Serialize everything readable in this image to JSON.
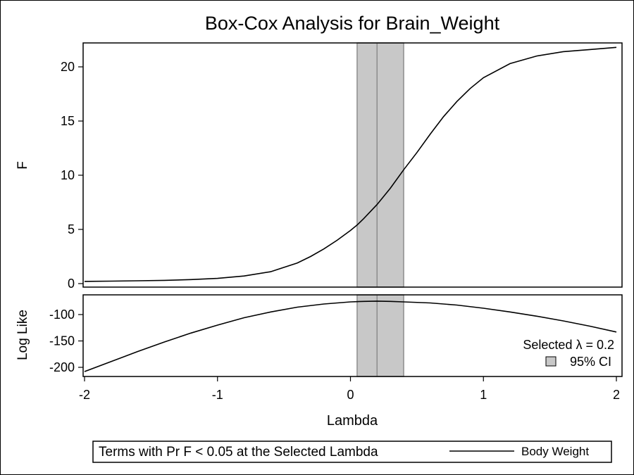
{
  "chart_data": [
    {
      "type": "line",
      "title": "Box-Cox Analysis for Brain_Weight",
      "ylabel": "F",
      "ylim": [
        0,
        22
      ],
      "yticks": [
        0,
        5,
        10,
        15,
        20
      ],
      "grid": false,
      "series": [
        {
          "x": [
            -2.0,
            -1.8,
            -1.6,
            -1.4,
            -1.2,
            -1.0,
            -0.8,
            -0.6,
            -0.4,
            -0.3,
            -0.2,
            -0.1,
            0.0,
            0.05,
            0.1,
            0.2,
            0.3,
            0.4,
            0.5,
            0.6,
            0.7,
            0.8,
            0.9,
            1.0,
            1.2,
            1.4,
            1.6,
            1.8,
            2.0
          ],
          "values": [
            0.2,
            0.23,
            0.26,
            0.3,
            0.37,
            0.48,
            0.7,
            1.1,
            1.9,
            2.5,
            3.2,
            4.0,
            4.9,
            5.4,
            6.0,
            7.3,
            8.8,
            10.5,
            12.1,
            13.8,
            15.4,
            16.8,
            18.0,
            19.0,
            20.3,
            21.0,
            21.4,
            21.6,
            21.8
          ]
        }
      ],
      "bands": [
        {
          "from": 0.05,
          "to": 0.4,
          "label": "95% CI",
          "color": "#c8c8c8"
        }
      ],
      "reference_lines": [
        {
          "x": 0.2
        }
      ]
    },
    {
      "type": "line",
      "ylabel": "Log Like",
      "xlabel": "Lambda",
      "xlim": [
        -2,
        2
      ],
      "xticks": [
        -2,
        -1,
        0,
        1,
        2
      ],
      "ylim": [
        -210,
        -70
      ],
      "yticks": [
        -100,
        -150,
        -200
      ],
      "grid": false,
      "series": [
        {
          "x": [
            -2.0,
            -1.8,
            -1.6,
            -1.4,
            -1.2,
            -1.0,
            -0.8,
            -0.6,
            -0.4,
            -0.2,
            0.0,
            0.1,
            0.2,
            0.3,
            0.4,
            0.6,
            0.8,
            1.0,
            1.2,
            1.4,
            1.6,
            1.8,
            2.0
          ],
          "values": [
            -208,
            -189,
            -170,
            -152,
            -135,
            -120,
            -106,
            -95,
            -86,
            -80,
            -76,
            -75,
            -74.5,
            -75,
            -76,
            -78,
            -82,
            -88,
            -95,
            -103,
            -112,
            -122,
            -133
          ]
        }
      ],
      "bands": [
        {
          "from": 0.05,
          "to": 0.4,
          "label": "95% CI",
          "color": "#c8c8c8"
        }
      ],
      "reference_lines": [
        {
          "x": 0.2
        }
      ],
      "annotation": "Selected λ = 0.2",
      "legend_entry": "95% CI",
      "legend_placement": "bottom-right"
    }
  ],
  "footer_legend": {
    "title": "Terms with Pr F < 0.05 at the Selected Lambda",
    "entries": [
      {
        "label": "Body Weight",
        "style": "solid-line",
        "color": "#000000"
      }
    ]
  },
  "colors": {
    "band": "#c8c8c8",
    "band_edge": "#8c8c8c",
    "line": "#000000",
    "background": "#ffffff"
  }
}
